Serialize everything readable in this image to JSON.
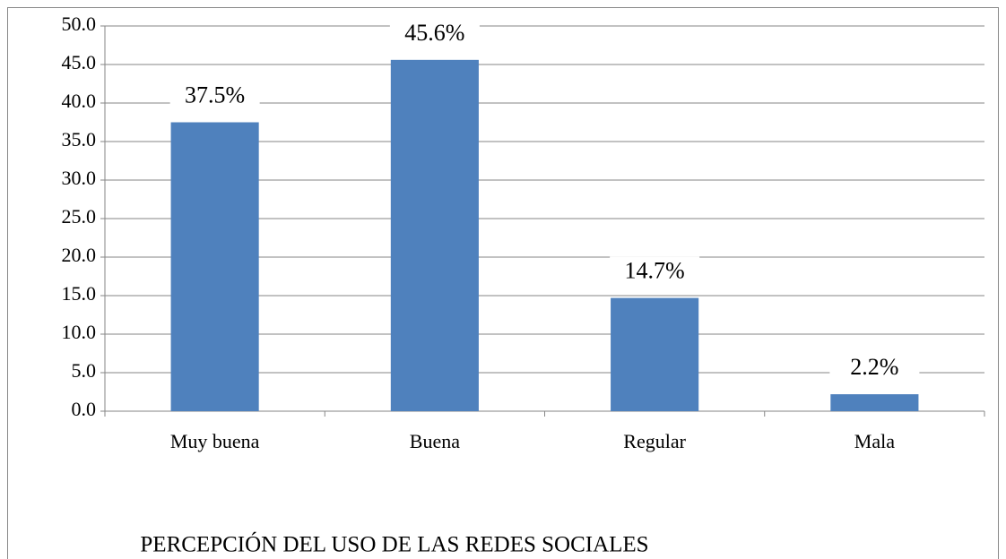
{
  "chart_data": {
    "type": "bar",
    "x_label": "PERCEPCIÓN DEL USO DE LAS REDES SOCIALES",
    "categories": [
      "Muy buena",
      "Buena",
      "Regular",
      "Mala"
    ],
    "values": [
      37.5,
      45.6,
      14.7,
      2.2
    ],
    "value_labels": [
      "37.5%",
      "45.6%",
      "14.7%",
      "2.2%"
    ],
    "color": "#4f81bd",
    "ylim": [
      0,
      50
    ],
    "yticks": [
      {
        "value": 0,
        "label": "0.0"
      },
      {
        "value": 5,
        "label": "5.0"
      },
      {
        "value": 10,
        "label": "10.0"
      },
      {
        "value": 15,
        "label": "15.0"
      },
      {
        "value": 20,
        "label": "20.0"
      },
      {
        "value": 25,
        "label": "25.0"
      },
      {
        "value": 30,
        "label": "30.0"
      },
      {
        "value": 35,
        "label": "35.0"
      },
      {
        "value": 40,
        "label": "40.0"
      },
      {
        "value": 45,
        "label": "45.0"
      },
      {
        "value": 50,
        "label": "50.0"
      }
    ],
    "grid": true
  }
}
